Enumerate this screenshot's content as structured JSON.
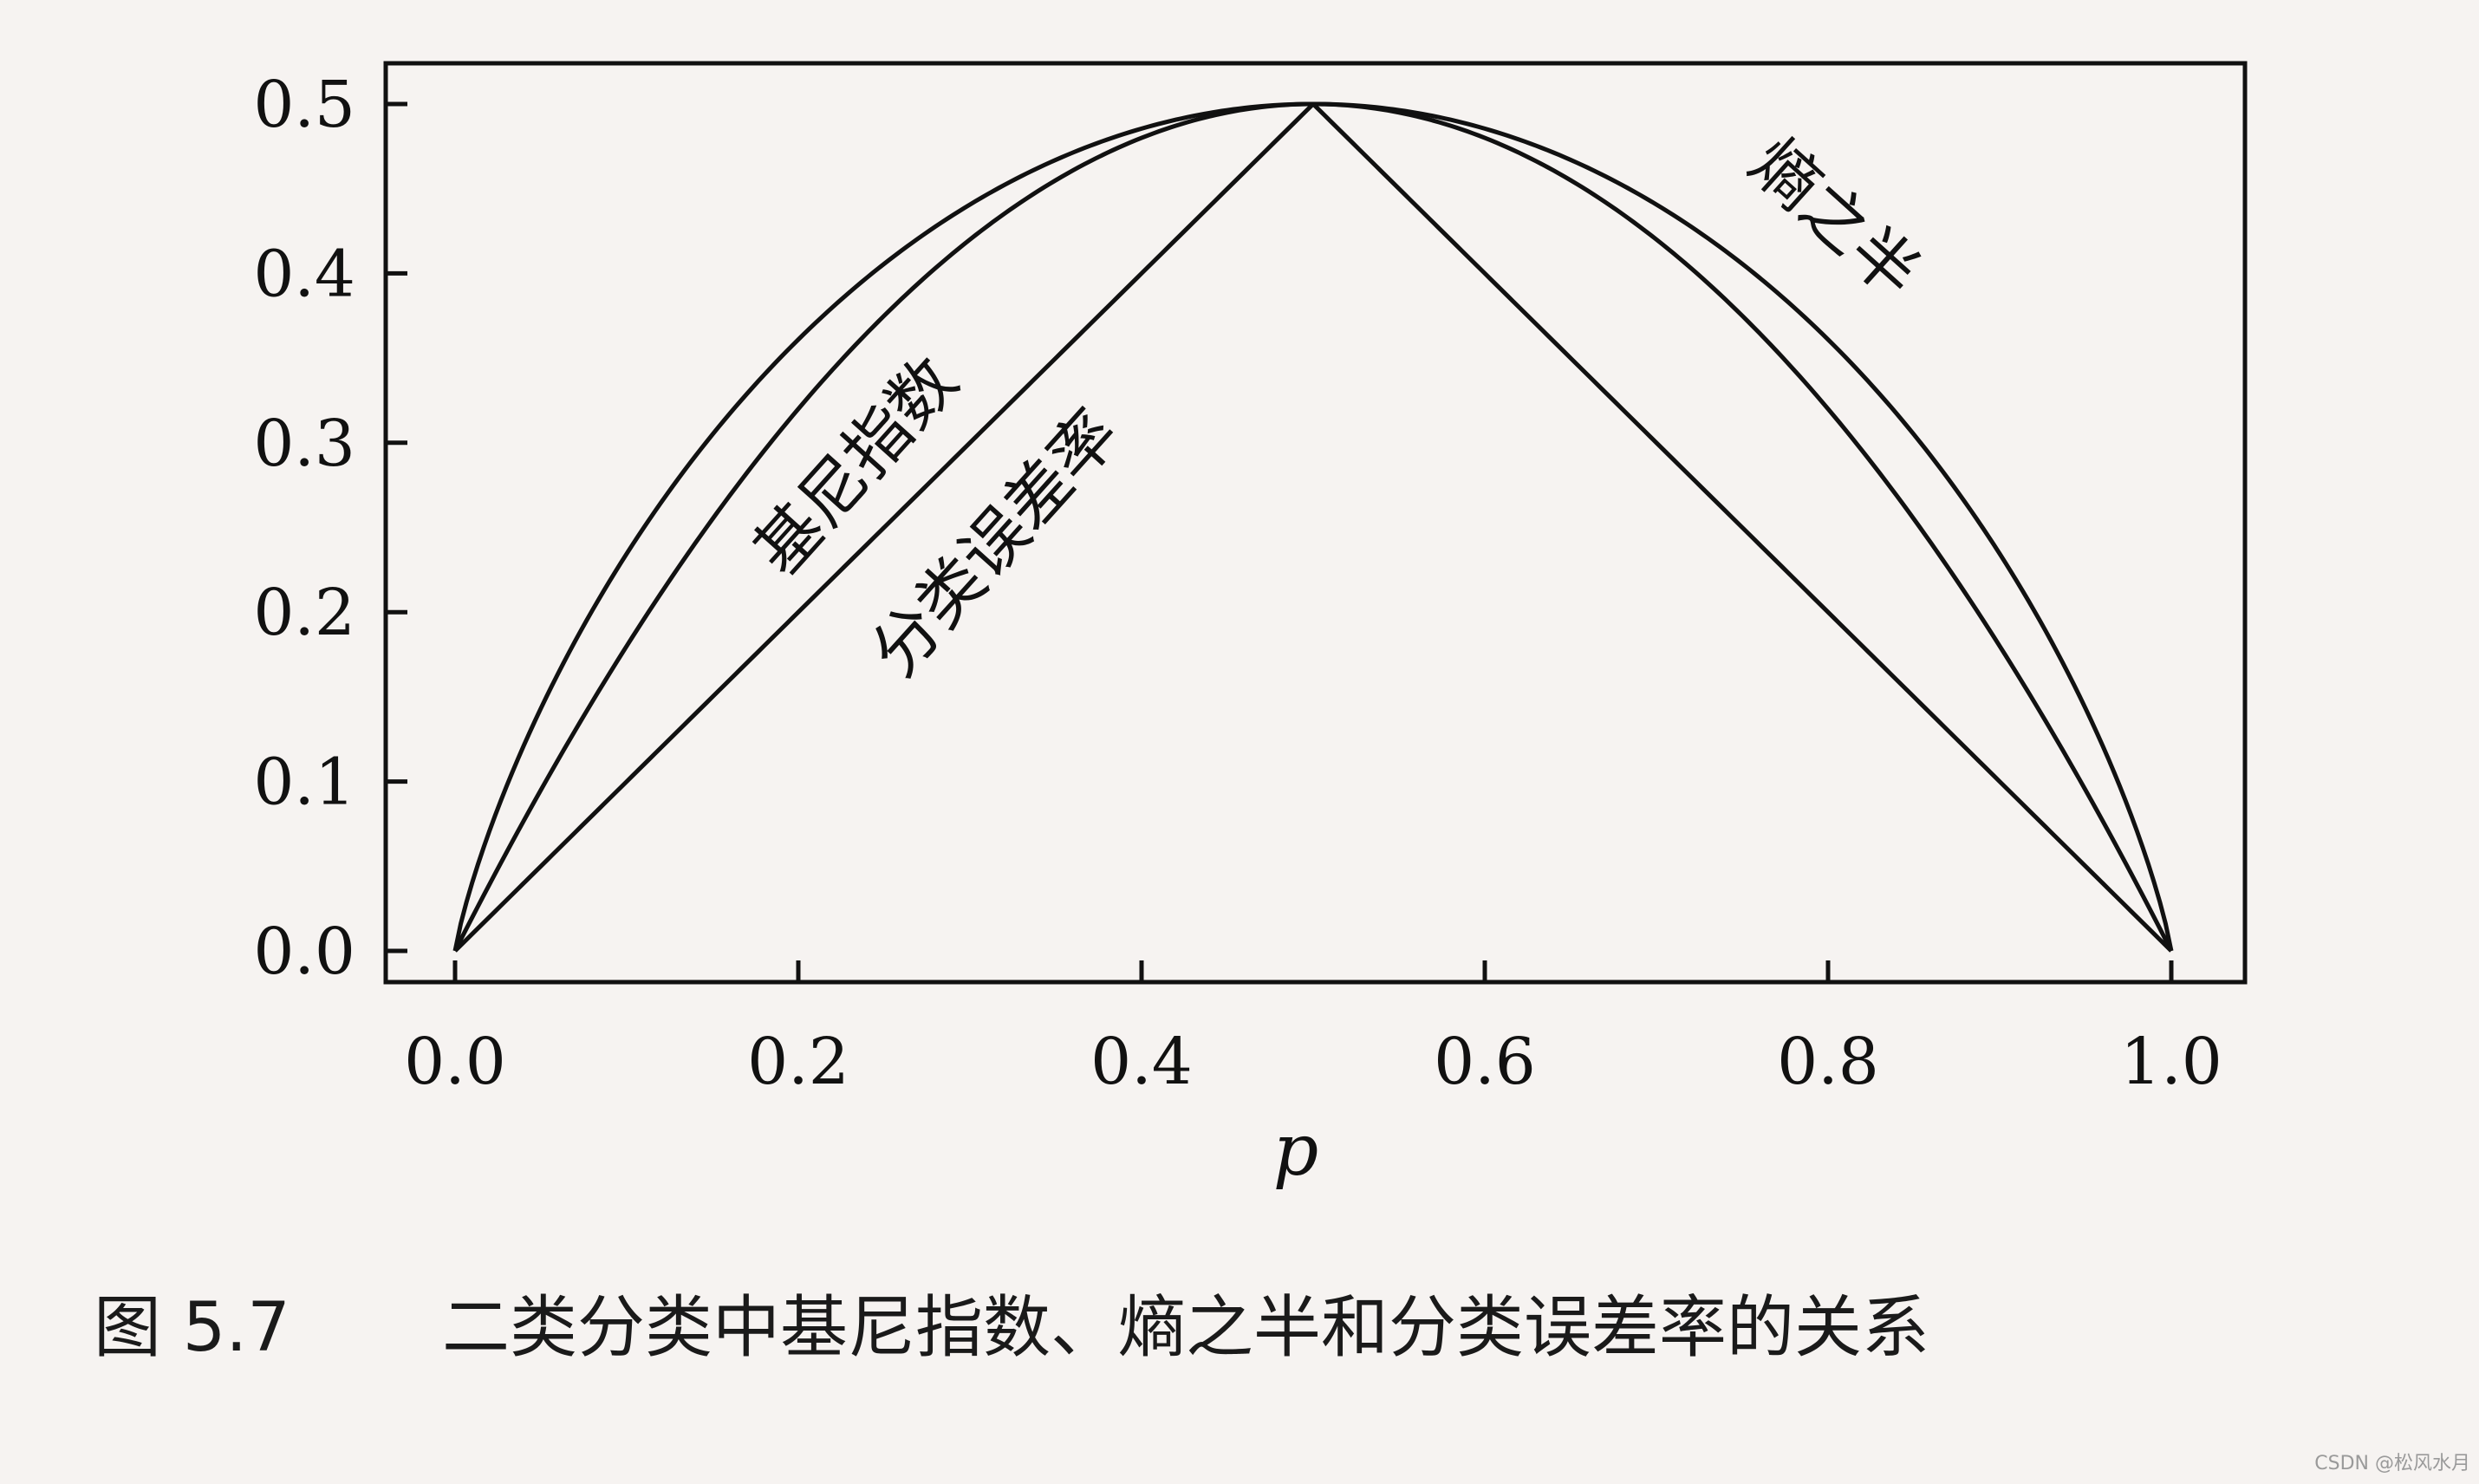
{
  "chart_data": {
    "type": "line",
    "xlabel": "p",
    "ylabel": "",
    "xlim": [
      0,
      1
    ],
    "ylim": [
      0,
      0.52
    ],
    "xticks": [
      "0.0",
      "0.2",
      "0.4",
      "0.6",
      "0.8",
      "1.0"
    ],
    "yticks": [
      "0.0",
      "0.1",
      "0.2",
      "0.3",
      "0.4",
      "0.5"
    ],
    "grid": false,
    "series": [
      {
        "name": "熵之半",
        "function": "half_entropy",
        "x": [
          0.0,
          0.1,
          0.2,
          0.3,
          0.4,
          0.5,
          0.6,
          0.7,
          0.8,
          0.9,
          1.0
        ],
        "y": [
          0.0,
          0.234,
          0.361,
          0.441,
          0.485,
          0.5,
          0.485,
          0.441,
          0.361,
          0.234,
          0.0
        ]
      },
      {
        "name": "基尼指数",
        "function": "gini",
        "x": [
          0.0,
          0.1,
          0.2,
          0.3,
          0.4,
          0.5,
          0.6,
          0.7,
          0.8,
          0.9,
          1.0
        ],
        "y": [
          0.0,
          0.18,
          0.32,
          0.42,
          0.48,
          0.5,
          0.48,
          0.42,
          0.32,
          0.18,
          0.0
        ]
      },
      {
        "name": "分类误差率",
        "function": "error",
        "x": [
          0.0,
          0.5,
          1.0
        ],
        "y": [
          0.0,
          0.5,
          0.0
        ]
      }
    ]
  },
  "labels": {
    "entropy": "熵之半",
    "gini": "基尼指数",
    "error": "分类误差率"
  },
  "caption": {
    "number": "图 5.7",
    "text": "二类分类中基尼指数、熵之半和分类误差率的关系"
  },
  "watermark": "CSDN @松风水月"
}
